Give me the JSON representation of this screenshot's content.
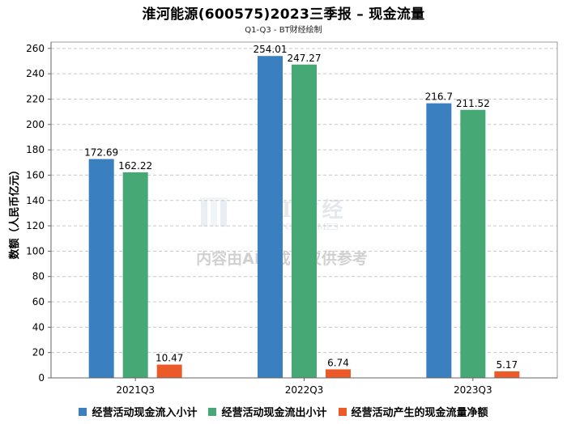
{
  "title": "淮河能源(600575)2023三季报 – 现金流量",
  "subtitle": "Q1-Q3 - BT财经绘制",
  "watermark": {
    "brand": "BT财经",
    "brand_sub": "BUSINESSTIMES",
    "notice": "内容由AI生成，仅供参考"
  },
  "chart_data": {
    "type": "bar",
    "categories": [
      "2021Q3",
      "2022Q3",
      "2023Q3"
    ],
    "series": [
      {
        "name": "经营活动现金流入小计",
        "color": "#3a80c1",
        "values": [
          172.69,
          254.01,
          216.7
        ],
        "labels": [
          "172.69",
          "254.01",
          "216.7"
        ]
      },
      {
        "name": "经营活动现金流出小计",
        "color": "#46a874",
        "values": [
          162.22,
          247.27,
          211.52
        ],
        "labels": [
          "162.22",
          "247.27",
          "211.52"
        ]
      },
      {
        "name": "经营活动产生的现金流量净额",
        "color": "#ec5a2a",
        "values": [
          10.47,
          6.74,
          5.17
        ],
        "labels": [
          "10.47",
          "6.74",
          "5.17"
        ]
      }
    ],
    "ylabel": "数额（人民币亿元）",
    "xlabel": "",
    "ylim": [
      0,
      265
    ],
    "yticks": [
      "0",
      "20",
      "40",
      "60",
      "80",
      "100",
      "120",
      "140",
      "160",
      "180",
      "200",
      "220",
      "240",
      "260"
    ],
    "grid": true,
    "legend_position": "bottom"
  }
}
